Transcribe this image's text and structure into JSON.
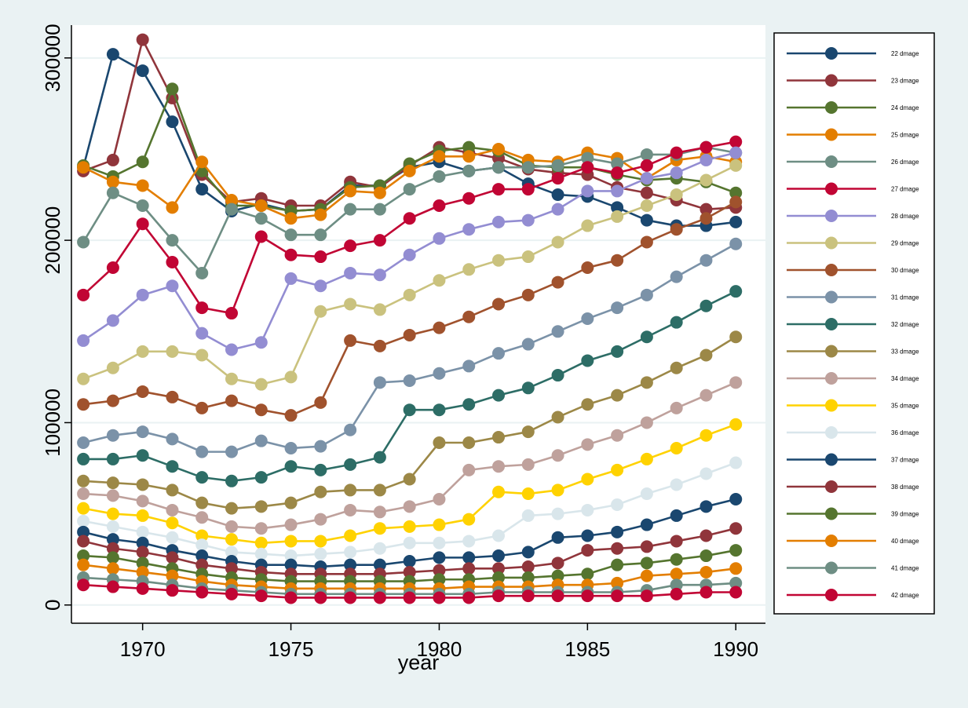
{
  "chart_data": {
    "type": "line",
    "title": "",
    "xlabel": "year",
    "ylabel": "",
    "xlim": [
      1967.6,
      1991.0
    ],
    "ylim": [
      -10000,
      318000
    ],
    "xticks": [
      1970,
      1975,
      1980,
      1985,
      1990
    ],
    "xtick_labels": [
      "1970",
      "1975",
      "1980",
      "1985",
      "1990"
    ],
    "yticks": [
      0,
      100000,
      200000,
      300000
    ],
    "ytick_labels": [
      "0",
      "100000",
      "200000",
      "300000"
    ],
    "grid": "horizontal",
    "legend_position": "right",
    "x": [
      1968,
      1969,
      1970,
      1971,
      1972,
      1973,
      1974,
      1975,
      1976,
      1977,
      1978,
      1979,
      1980,
      1981,
      1982,
      1983,
      1984,
      1985,
      1986,
      1987,
      1988,
      1989,
      1990
    ],
    "series": [
      {
        "name": "22 dmage",
        "color": "#1a476f",
        "values": [
          240000,
          302000,
          293000,
          265000,
          228000,
          216000,
          220000,
          216000,
          217000,
          230000,
          230000,
          240000,
          243000,
          238000,
          240000,
          231000,
          225000,
          224000,
          218000,
          211000,
          208000,
          208000,
          210000
        ]
      },
      {
        "name": "23 dmage",
        "color": "#90353b",
        "values": [
          238000,
          244000,
          310000,
          278000,
          236000,
          221000,
          223000,
          219000,
          219000,
          232000,
          229000,
          241000,
          251000,
          248000,
          245000,
          239000,
          237000,
          236000,
          229000,
          226000,
          222000,
          217000,
          218000
        ]
      },
      {
        "name": "24 dmage",
        "color": "#55752f",
        "values": [
          241000,
          235000,
          243000,
          283000,
          238000,
          219000,
          219000,
          216000,
          217000,
          229000,
          230000,
          242000,
          249000,
          251000,
          249000,
          241000,
          240000,
          240000,
          236000,
          233000,
          234000,
          232000,
          226000
        ]
      },
      {
        "name": "25 dmage",
        "color": "#e37e00",
        "values": [
          240000,
          232000,
          230000,
          218000,
          243000,
          222000,
          219000,
          212000,
          214000,
          227000,
          226000,
          238000,
          246000,
          246000,
          250000,
          244000,
          243000,
          248000,
          245000,
          234000,
          244000,
          246000,
          243000
        ]
      },
      {
        "name": "26 dmage",
        "color": "#6e8e84",
        "values": [
          199000,
          226000,
          219000,
          200000,
          182000,
          217000,
          212000,
          203000,
          203000,
          217000,
          217000,
          228000,
          235000,
          238000,
          240000,
          240000,
          241000,
          245000,
          242000,
          247000,
          247000,
          251000,
          248000
        ]
      },
      {
        "name": "27 dmage",
        "color": "#c10534",
        "values": [
          170000,
          185000,
          209000,
          188000,
          163000,
          160000,
          202000,
          192000,
          191000,
          197000,
          200000,
          212000,
          219000,
          223000,
          228000,
          228000,
          234000,
          240000,
          237000,
          241000,
          248000,
          251000,
          254000
        ]
      },
      {
        "name": "28 dmage",
        "color": "#938dd2",
        "values": [
          145000,
          156000,
          170000,
          175000,
          149000,
          140000,
          144000,
          179000,
          175000,
          182000,
          181000,
          192000,
          201000,
          206000,
          210000,
          211000,
          217000,
          227000,
          227000,
          234000,
          237000,
          244000,
          248000
        ]
      },
      {
        "name": "29 dmage",
        "color": "#cac27e",
        "values": [
          124000,
          130000,
          139000,
          139000,
          137000,
          124000,
          121000,
          125000,
          161000,
          165000,
          162000,
          170000,
          178000,
          184000,
          189000,
          191000,
          199000,
          208000,
          213000,
          219000,
          225000,
          233000,
          241000
        ]
      },
      {
        "name": "30 dmage",
        "color": "#a0522d",
        "values": [
          110000,
          112000,
          117000,
          114000,
          108000,
          112000,
          107000,
          104000,
          111000,
          145000,
          142000,
          148000,
          152000,
          158000,
          165000,
          170000,
          177000,
          185000,
          189000,
          199000,
          206000,
          212000,
          221000
        ]
      },
      {
        "name": "31 dmage",
        "color": "#7b92a8",
        "values": [
          89000,
          93000,
          95000,
          91000,
          84000,
          84000,
          90000,
          86000,
          87000,
          96000,
          122000,
          123000,
          127000,
          131000,
          138000,
          143000,
          150000,
          157000,
          163000,
          170000,
          180000,
          189000,
          198000
        ]
      },
      {
        "name": "32 dmage",
        "color": "#2d6d66",
        "values": [
          80000,
          80000,
          82000,
          76000,
          70000,
          68000,
          70000,
          76000,
          74000,
          77000,
          81000,
          107000,
          107000,
          110000,
          115000,
          119000,
          126000,
          134000,
          139000,
          147000,
          155000,
          164000,
          172000
        ]
      },
      {
        "name": "33 dmage",
        "color": "#9c8847",
        "values": [
          68000,
          67000,
          66000,
          63000,
          56000,
          53000,
          54000,
          56000,
          62000,
          63000,
          63000,
          69000,
          89000,
          89000,
          92000,
          95000,
          103000,
          110000,
          115000,
          122000,
          130000,
          137000,
          147000
        ]
      },
      {
        "name": "34 dmage",
        "color": "#bfa19c",
        "values": [
          61000,
          60000,
          57000,
          52000,
          48000,
          43000,
          42000,
          44000,
          47000,
          52000,
          51000,
          54000,
          58000,
          74000,
          76000,
          77000,
          82000,
          88000,
          93000,
          100000,
          108000,
          115000,
          122000
        ]
      },
      {
        "name": "35 dmage",
        "color": "#ffd200",
        "values": [
          53000,
          50000,
          49000,
          45000,
          38000,
          36000,
          34000,
          35000,
          35000,
          38000,
          42000,
          43000,
          44000,
          47000,
          62000,
          61000,
          63000,
          69000,
          74000,
          80000,
          86000,
          93000,
          99000
        ]
      },
      {
        "name": "36 dmage",
        "color": "#d9e6eb",
        "values": [
          46000,
          43000,
          40000,
          37000,
          33000,
          29000,
          28000,
          27000,
          28000,
          29000,
          31000,
          34000,
          34000,
          35000,
          38000,
          49000,
          50000,
          52000,
          55000,
          61000,
          66000,
          72000,
          78000
        ]
      },
      {
        "name": "37 dmage",
        "color": "#1a476f",
        "values": [
          40000,
          36000,
          34000,
          30000,
          27000,
          24000,
          22000,
          22000,
          21000,
          22000,
          22000,
          24000,
          26000,
          26000,
          27000,
          29000,
          37000,
          38000,
          40000,
          44000,
          49000,
          54000,
          58000
        ]
      },
      {
        "name": "38 dmage",
        "color": "#90353b",
        "values": [
          35000,
          31000,
          29000,
          26000,
          22000,
          20000,
          18000,
          17000,
          17000,
          17000,
          17000,
          18000,
          19000,
          20000,
          20000,
          21000,
          23000,
          30000,
          31000,
          32000,
          35000,
          38000,
          42000
        ]
      },
      {
        "name": "39 dmage",
        "color": "#55752f",
        "values": [
          27000,
          26000,
          23000,
          20000,
          17000,
          15000,
          14000,
          13000,
          13000,
          13000,
          13000,
          13000,
          14000,
          14000,
          15000,
          15000,
          16000,
          17000,
          22000,
          23000,
          25000,
          27000,
          30000
        ]
      },
      {
        "name": "40 dmage",
        "color": "#e37e00",
        "values": [
          22000,
          20000,
          18000,
          16000,
          13000,
          11000,
          10000,
          9000,
          9000,
          9000,
          9000,
          9000,
          9000,
          10000,
          10000,
          10000,
          11000,
          11000,
          12000,
          16000,
          17000,
          18000,
          20000
        ]
      },
      {
        "name": "41 dmage",
        "color": "#6e8e84",
        "values": [
          15000,
          14000,
          13000,
          11000,
          9000,
          8000,
          7000,
          6000,
          6000,
          6000,
          6000,
          6000,
          6000,
          6000,
          7000,
          7000,
          7000,
          7000,
          7000,
          8000,
          11000,
          11000,
          12000
        ]
      },
      {
        "name": "42 dmage",
        "color": "#c10534",
        "values": [
          11000,
          10000,
          9000,
          8000,
          7000,
          6000,
          5000,
          4000,
          4000,
          4000,
          4000,
          4000,
          4000,
          4000,
          5000,
          5000,
          5000,
          5000,
          5000,
          5000,
          6000,
          7000,
          7000
        ]
      }
    ]
  }
}
